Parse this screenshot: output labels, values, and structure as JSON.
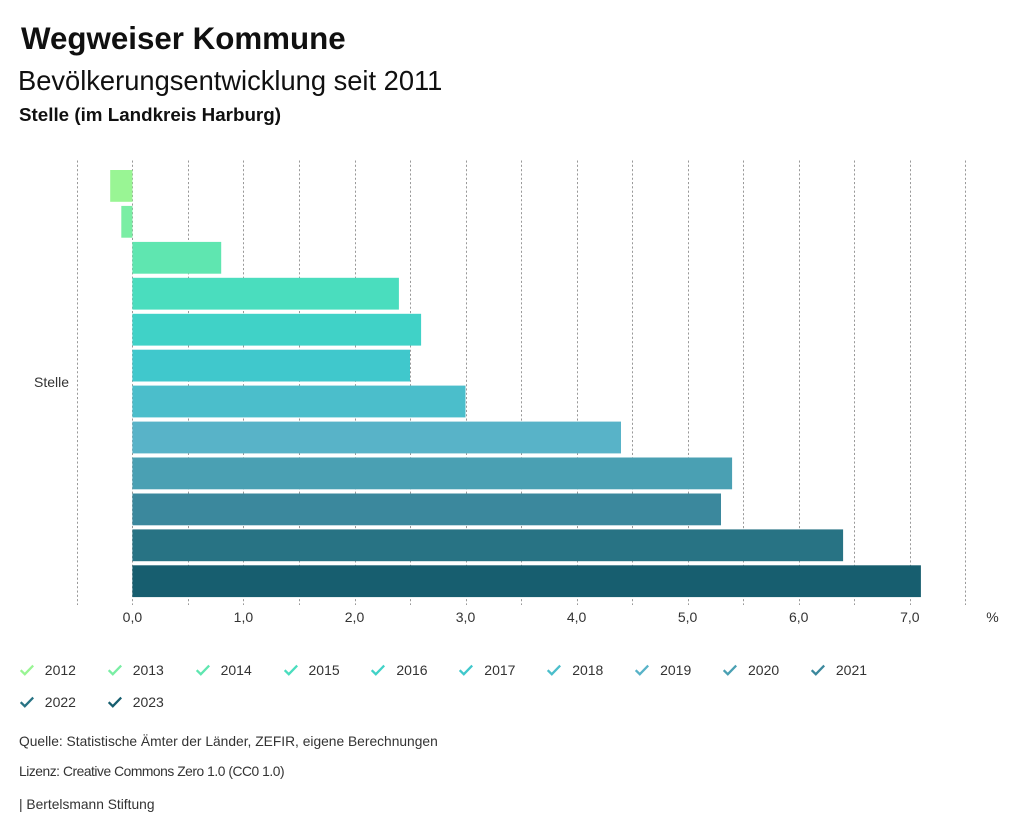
{
  "header": {
    "title": "Wegweiser Kommune",
    "subtitle": "Bevölkerungsentwicklung seit 2011",
    "region": "Stelle (im Landkreis Harburg)"
  },
  "chart_data": {
    "type": "bar",
    "orientation": "horizontal",
    "title": "Bevölkerungsentwicklung seit 2011",
    "xlabel": "%",
    "ylabel": "Stelle",
    "unit_suffix": "%",
    "xlim": [
      -0.5,
      7.5
    ],
    "grid_step": 0.5,
    "grid": true,
    "x_tick_values": [
      0,
      1,
      2,
      3,
      4,
      5,
      6,
      7
    ],
    "x_tick_labels": [
      "0,0",
      "1,0",
      "2,0",
      "3,0",
      "4,0",
      "5,0",
      "6,0",
      "7,0"
    ],
    "categories": [
      "2012",
      "2013",
      "2014",
      "2015",
      "2016",
      "2017",
      "2018",
      "2019",
      "2020",
      "2021",
      "2022",
      "2023"
    ],
    "values": [
      -0.2,
      -0.1,
      0.8,
      2.4,
      2.6,
      2.5,
      3.0,
      4.4,
      5.4,
      5.3,
      6.4,
      7.1
    ],
    "colors": [
      "#99F594",
      "#7AEEA4",
      "#5FE6B0",
      "#4ADDBE",
      "#40D2C7",
      "#40C8CC",
      "#4BBECB",
      "#58B3C8",
      "#4AA0B3",
      "#3B889D",
      "#287384",
      "#175E6F"
    ],
    "legend_position": "bottom"
  },
  "legend": {
    "check_icon": "checkmark-icon"
  },
  "footer": {
    "source": "Quelle: Statistische Ämter der Länder, ZEFIR, eigene Berechnungen",
    "license": "Lizenz: Creative Commons Zero 1.0 (CC0 1.0)",
    "attribution": "| Bertelsmann Stiftung"
  }
}
